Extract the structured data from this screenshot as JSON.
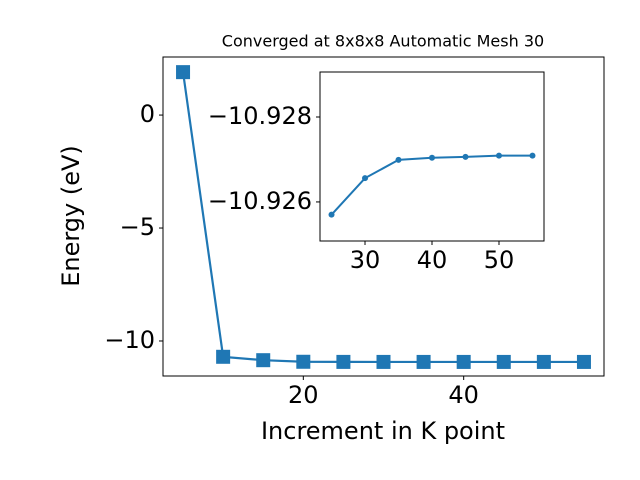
{
  "chart_data": [
    {
      "type": "line",
      "title": "Converged at 8x8x8 Automatic Mesh 30",
      "x_label": "Increment in K point",
      "y_label": "Energy (eV)",
      "x": [
        5,
        10,
        15,
        20,
        25,
        30,
        35,
        40,
        45,
        50,
        55
      ],
      "series": [
        {
          "color": "#1f77b4",
          "marker": "square",
          "values": [
            1.9,
            -10.7,
            -10.85,
            -10.92,
            -10.9257,
            -10.92656,
            -10.92699,
            -10.92704,
            -10.92706,
            -10.92709,
            -10.92709
          ]
        }
      ],
      "xlim": [
        2.5,
        57.5
      ],
      "ylim": [
        -11.55,
        2.57
      ],
      "xticks": [
        20,
        40
      ],
      "yticks": [
        {
          "value": -10,
          "label": "−10"
        },
        {
          "value": -5,
          "label": "−5"
        },
        0
      ]
    },
    {
      "type": "line",
      "x": [
        25,
        30,
        35,
        40,
        45,
        50,
        55
      ],
      "series": [
        {
          "color": "#1f77b4",
          "marker": "circle",
          "values": [
            -10.9257,
            -10.92656,
            -10.92699,
            -10.92704,
            -10.92706,
            -10.92709,
            -10.92709
          ]
        }
      ],
      "xlim": [
        23.28,
        56.72
      ],
      "ylim": [
        -10.92508,
        -10.92906
      ],
      "xticks": [
        30,
        40,
        50
      ],
      "yticks": [
        {
          "value": -10.928,
          "label": "−10.928"
        },
        {
          "value": -10.926,
          "label": "−10.926"
        }
      ]
    }
  ]
}
